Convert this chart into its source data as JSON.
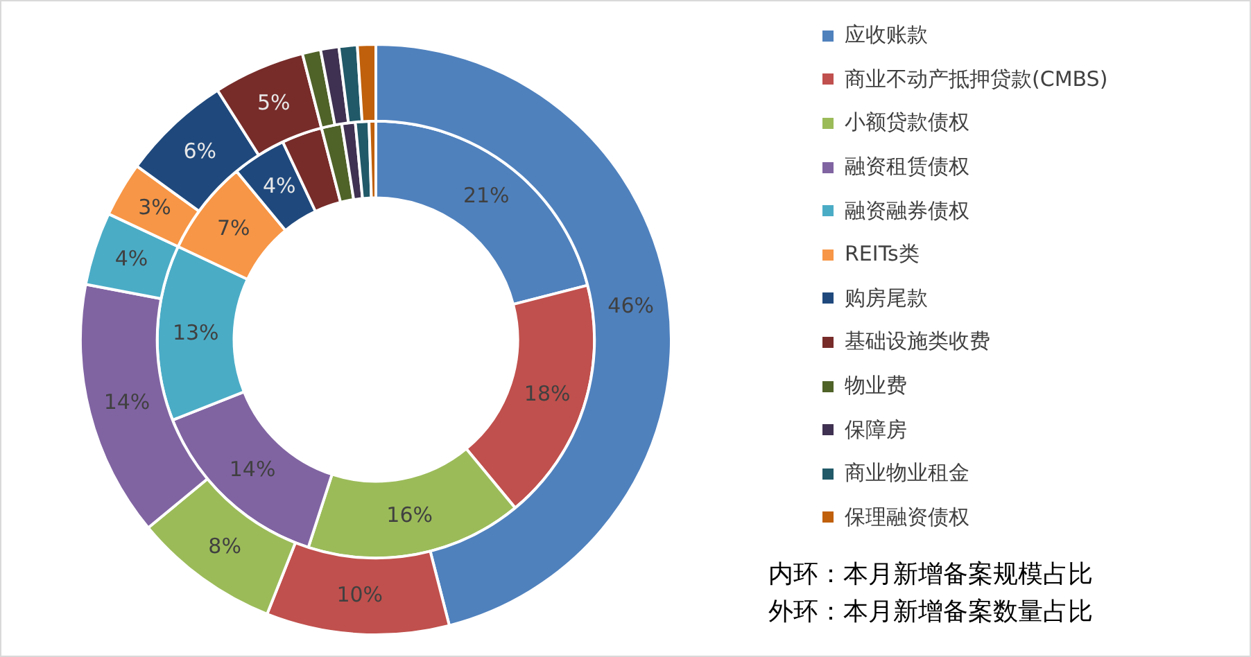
{
  "chart_data": {
    "type": "donut",
    "categories": [
      "应收账款",
      "商业不动产抵押贷款(CMBS)",
      "小额贷款债权",
      "融资租赁债权",
      "融资融券债权",
      "REITs类",
      "购房尾款",
      "基础设施类收费",
      "物业费",
      "保障房",
      "商业物业租金",
      "保理融资债权"
    ],
    "colors": [
      "#4f81bd",
      "#c0504d",
      "#9bbb59",
      "#8064a2",
      "#4bacc6",
      "#f79646",
      "#1f497d",
      "#772c2a",
      "#4f6228",
      "#3f3151",
      "#215968",
      "#c0600c"
    ],
    "series": [
      {
        "values": [
          21,
          18,
          16,
          14,
          13,
          7,
          4,
          3,
          1.5,
          1,
          1,
          0.5
        ],
        "value_labels": [
          "21%",
          "18%",
          "16%",
          "14%",
          "13%",
          "7%",
          "4%",
          null,
          null,
          null,
          null,
          null
        ]
      },
      {
        "values": [
          46,
          10,
          8,
          14,
          4,
          3,
          6,
          5,
          1,
          1,
          1,
          1
        ],
        "value_labels": [
          "46%",
          "10%",
          "8%",
          "14%",
          "4%",
          "3%",
          "6%",
          "5%",
          null,
          null,
          null,
          null
        ]
      }
    ],
    "legend": "right",
    "annotations": [
      "内环：本月新增备案规模占比",
      "外环：本月新增备案数量占比"
    ]
  }
}
